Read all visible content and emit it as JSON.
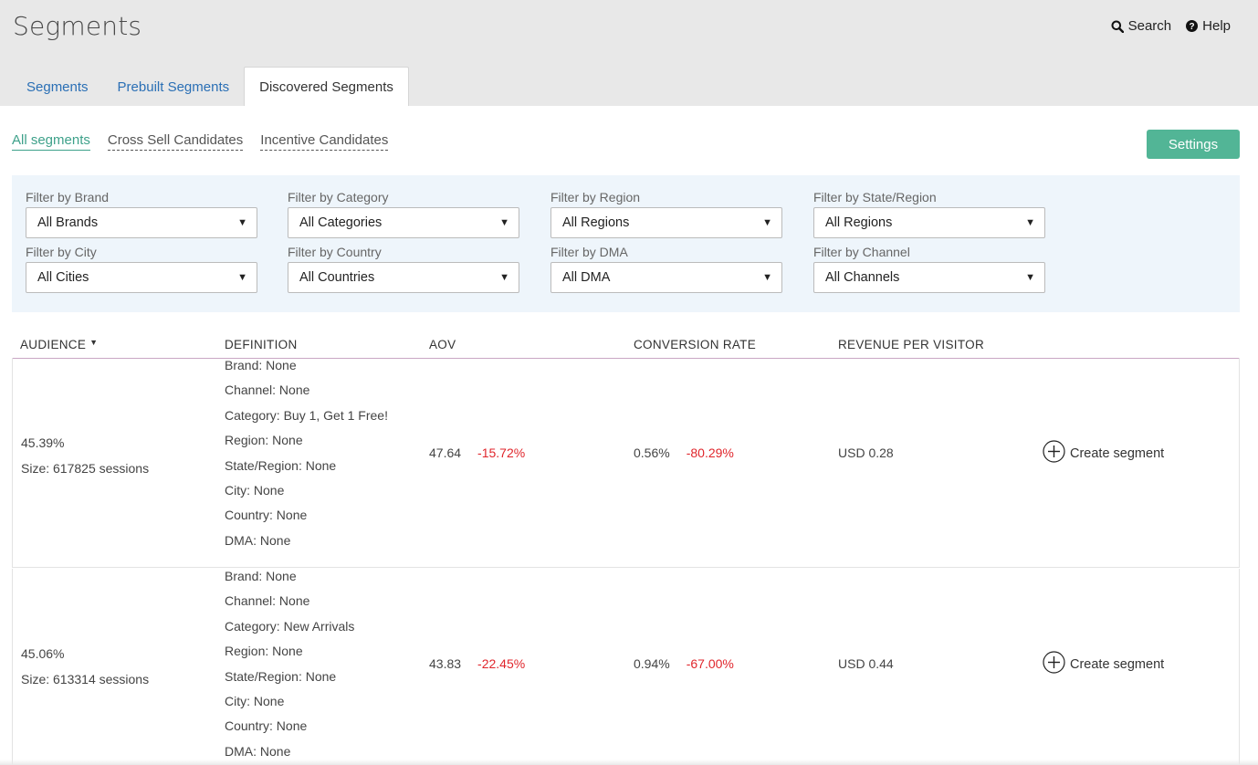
{
  "page": {
    "title": "Segments",
    "search_label": "Search",
    "help_label": "Help"
  },
  "tabs": [
    {
      "label": "Segments",
      "active": false
    },
    {
      "label": "Prebuilt Segments",
      "active": false
    },
    {
      "label": "Discovered Segments",
      "active": true
    }
  ],
  "subnav": [
    {
      "label": "All segments",
      "active": true
    },
    {
      "label": "Cross Sell Candidates",
      "active": false
    },
    {
      "label": "Incentive Candidates",
      "active": false
    }
  ],
  "settings_label": "Settings",
  "filters": [
    {
      "label": "Filter by Brand",
      "value": "All Brands"
    },
    {
      "label": "Filter by Category",
      "value": "All Categories"
    },
    {
      "label": "Filter by Region",
      "value": "All Regions"
    },
    {
      "label": "Filter by State/Region",
      "value": "All Regions"
    },
    {
      "label": "Filter by City",
      "value": "All Cities"
    },
    {
      "label": "Filter by Country",
      "value": "All Countries"
    },
    {
      "label": "Filter by DMA",
      "value": "All DMA"
    },
    {
      "label": "Filter by Channel",
      "value": "All Channels"
    }
  ],
  "table": {
    "columns": [
      "AUDIENCE",
      "DEFINITION",
      "AOV",
      "CONVERSION RATE",
      "REVENUE PER VISITOR"
    ],
    "sorted_column": "AUDIENCE",
    "rows": [
      {
        "audience": "45.39%",
        "size": "Size: 617825 sessions",
        "definition": [
          "Brand: None",
          "Channel: None",
          "Category: Buy 1, Get 1 Free!",
          "Region: None",
          "State/Region: None",
          "City: None",
          "Country: None",
          "DMA: None"
        ],
        "aov": "47.64",
        "aov_change": "-15.72%",
        "conversion": "0.56%",
        "conversion_change": "-80.29%",
        "rpv": "USD 0.28",
        "action": "Create segment"
      },
      {
        "audience": "45.06%",
        "size": "Size: 613314 sessions",
        "definition": [
          "Brand: None",
          "Channel: None",
          "Category: New Arrivals",
          "Region: None",
          "State/Region: None",
          "City: None",
          "Country: None",
          "DMA: None"
        ],
        "aov": "43.83",
        "aov_change": "-22.45%",
        "conversion": "0.94%",
        "conversion_change": "-67.00%",
        "rpv": "USD 0.44",
        "action": "Create segment"
      }
    ]
  },
  "colors": {
    "accent_green": "#52b596",
    "link_blue": "#2a6fb5",
    "negative_red": "#e0262c",
    "filter_bg": "#eef5fb"
  }
}
